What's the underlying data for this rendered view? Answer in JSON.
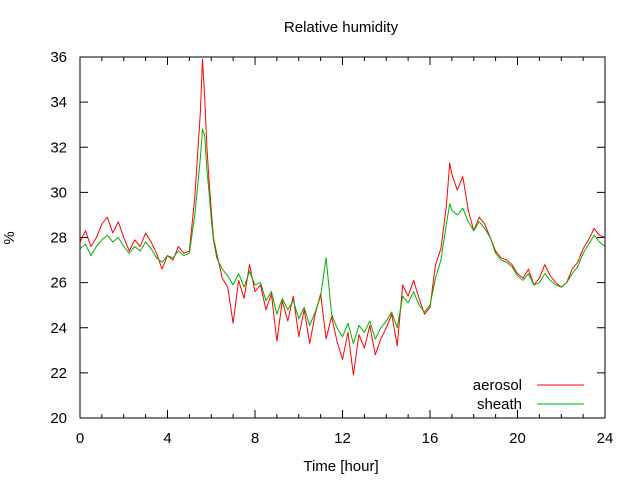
{
  "chart_data": {
    "type": "line",
    "title": "Relative humidity",
    "xlabel": "Time [hour]",
    "ylabel": "%",
    "xlim": [
      0,
      24
    ],
    "ylim": [
      20,
      36
    ],
    "xticks": [
      0,
      4,
      8,
      12,
      16,
      20,
      24
    ],
    "yticks": [
      20,
      22,
      24,
      26,
      28,
      30,
      32,
      34,
      36
    ],
    "grid": false,
    "legend_position": "bottom-right",
    "series": [
      {
        "name": "aerosol",
        "color": "#ff0000",
        "x": [
          0,
          0.25,
          0.5,
          0.75,
          1,
          1.25,
          1.5,
          1.75,
          2,
          2.25,
          2.5,
          2.75,
          3,
          3.25,
          3.5,
          3.75,
          4,
          4.25,
          4.5,
          4.75,
          5,
          5.25,
          5.5,
          5.6,
          5.7,
          5.8,
          5.9,
          6,
          6.1,
          6.25,
          6.5,
          6.75,
          7,
          7.25,
          7.5,
          7.75,
          8,
          8.25,
          8.5,
          8.75,
          9,
          9.25,
          9.5,
          9.75,
          10,
          10.25,
          10.5,
          10.75,
          11,
          11.25,
          11.5,
          11.75,
          12,
          12.25,
          12.5,
          12.75,
          13,
          13.25,
          13.5,
          13.75,
          14,
          14.25,
          14.5,
          14.75,
          15,
          15.25,
          15.5,
          15.75,
          16,
          16.25,
          16.5,
          16.75,
          16.9,
          17,
          17.25,
          17.5,
          17.75,
          18,
          18.25,
          18.5,
          18.75,
          19,
          19.25,
          19.5,
          19.75,
          20,
          20.25,
          20.5,
          20.75,
          21,
          21.25,
          21.5,
          21.75,
          22,
          22.25,
          22.5,
          22.75,
          23,
          23.25,
          23.5,
          23.75,
          24
        ],
        "values": [
          27.8,
          28.3,
          27.6,
          28.0,
          28.6,
          28.9,
          28.2,
          28.7,
          28.0,
          27.4,
          27.9,
          27.6,
          28.2,
          27.8,
          27.3,
          26.6,
          27.2,
          27.0,
          27.6,
          27.3,
          27.4,
          29.8,
          33.5,
          35.9,
          34.2,
          32.0,
          30.5,
          29.2,
          28.0,
          27.3,
          26.2,
          25.8,
          24.2,
          26.1,
          25.3,
          26.8,
          25.6,
          25.9,
          24.8,
          25.5,
          23.4,
          25.2,
          24.3,
          25.4,
          23.6,
          24.8,
          23.3,
          24.6,
          25.5,
          23.5,
          24.5,
          23.4,
          22.6,
          23.8,
          21.9,
          23.7,
          23.1,
          24.1,
          22.8,
          23.5,
          24.0,
          24.6,
          23.2,
          25.9,
          25.4,
          26.1,
          25.3,
          24.6,
          24.9,
          26.8,
          27.5,
          29.4,
          31.3,
          30.8,
          30.1,
          30.7,
          29.2,
          28.3,
          28.9,
          28.6,
          28.0,
          27.4,
          27.1,
          27.0,
          26.8,
          26.4,
          26.2,
          26.6,
          25.9,
          26.2,
          26.8,
          26.3,
          26.0,
          25.8,
          26.0,
          26.6,
          26.9,
          27.5,
          27.9,
          28.4,
          28.1,
          28.0
        ],
        "peak_label": ""
      },
      {
        "name": "sheath",
        "color": "#00b000",
        "x": [
          0,
          0.25,
          0.5,
          0.75,
          1,
          1.25,
          1.5,
          1.75,
          2,
          2.25,
          2.5,
          2.75,
          3,
          3.25,
          3.5,
          3.75,
          4,
          4.25,
          4.5,
          4.75,
          5,
          5.25,
          5.5,
          5.6,
          5.7,
          5.8,
          5.9,
          6,
          6.1,
          6.25,
          6.5,
          6.75,
          7,
          7.25,
          7.5,
          7.75,
          8,
          8.25,
          8.5,
          8.75,
          9,
          9.25,
          9.5,
          9.75,
          10,
          10.25,
          10.5,
          10.75,
          11,
          11.25,
          11.5,
          11.75,
          12,
          12.25,
          12.5,
          12.75,
          13,
          13.25,
          13.5,
          13.75,
          14,
          14.25,
          14.5,
          14.75,
          15,
          15.25,
          15.5,
          15.75,
          16,
          16.25,
          16.5,
          16.75,
          16.9,
          17,
          17.25,
          17.5,
          17.75,
          18,
          18.25,
          18.5,
          18.75,
          19,
          19.25,
          19.5,
          19.75,
          20,
          20.25,
          20.5,
          20.75,
          21,
          21.25,
          21.5,
          21.75,
          22,
          22.25,
          22.5,
          22.75,
          23,
          23.25,
          23.5,
          23.75,
          24
        ],
        "values": [
          27.5,
          27.7,
          27.2,
          27.6,
          27.9,
          28.1,
          27.8,
          28.0,
          27.6,
          27.3,
          27.6,
          27.4,
          27.8,
          27.5,
          27.1,
          26.9,
          27.2,
          27.1,
          27.4,
          27.2,
          27.3,
          29.0,
          31.5,
          32.8,
          32.5,
          31.0,
          30.0,
          28.8,
          27.9,
          27.1,
          26.6,
          26.3,
          25.9,
          26.4,
          25.8,
          26.5,
          25.9,
          26.0,
          25.2,
          25.6,
          24.6,
          25.3,
          24.8,
          25.2,
          24.4,
          24.9,
          24.1,
          24.7,
          25.4,
          27.1,
          24.6,
          24.0,
          23.6,
          24.2,
          23.3,
          24.1,
          23.8,
          24.3,
          23.5,
          24.0,
          24.3,
          24.7,
          24.0,
          25.4,
          25.1,
          25.6,
          25.0,
          24.7,
          25.0,
          26.2,
          27.0,
          28.6,
          29.5,
          29.2,
          29.0,
          29.3,
          28.7,
          28.3,
          28.7,
          28.4,
          28.0,
          27.3,
          27.0,
          26.9,
          26.7,
          26.3,
          26.1,
          26.4,
          25.9,
          26.0,
          26.4,
          26.1,
          25.9,
          25.8,
          26.0,
          26.4,
          26.7,
          27.3,
          27.7,
          28.1,
          27.8,
          27.6
        ]
      }
    ]
  }
}
